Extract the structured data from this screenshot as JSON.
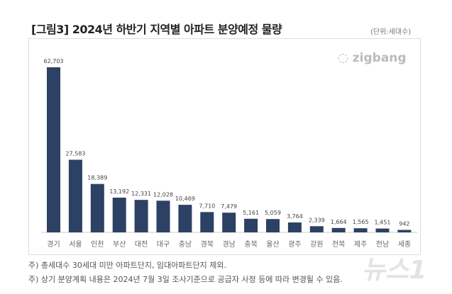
{
  "chart_data": {
    "type": "bar",
    "title": "[그림3] 2024년 하반기 지역별 아파트 분양예정 물량",
    "unit": "(단위:세대수)",
    "categories": [
      "경기",
      "서울",
      "인천",
      "부산",
      "대전",
      "대구",
      "충남",
      "경북",
      "경남",
      "충북",
      "울산",
      "광주",
      "강원",
      "전북",
      "제주",
      "전남",
      "세종"
    ],
    "values": [
      62703,
      27583,
      18389,
      13192,
      12331,
      12028,
      10469,
      7710,
      7479,
      5161,
      5059,
      3764,
      2339,
      1664,
      1565,
      1451,
      942
    ],
    "value_labels": [
      "62,703",
      "27,583",
      "18,389",
      "13,192",
      "12,331",
      "12,028",
      "10,469",
      "7,710",
      "7,479",
      "5,161",
      "5,059",
      "3,764",
      "2,339",
      "1,664",
      "1,565",
      "1,451",
      "942"
    ],
    "ylim": [
      0,
      62703
    ],
    "grid": false,
    "bar_color": "#2c4163"
  },
  "logo": "zigbang",
  "notes": [
    "주) 총세대수 30세대 미만 아파트단지, 임대아파트단지 제외.",
    "주) 상기 분양계획 내용은 2024년 7월 3일 조사기준으로 공급자 사정 등에 따라 변경될 수 있음."
  ],
  "watermark": "뉴스1"
}
